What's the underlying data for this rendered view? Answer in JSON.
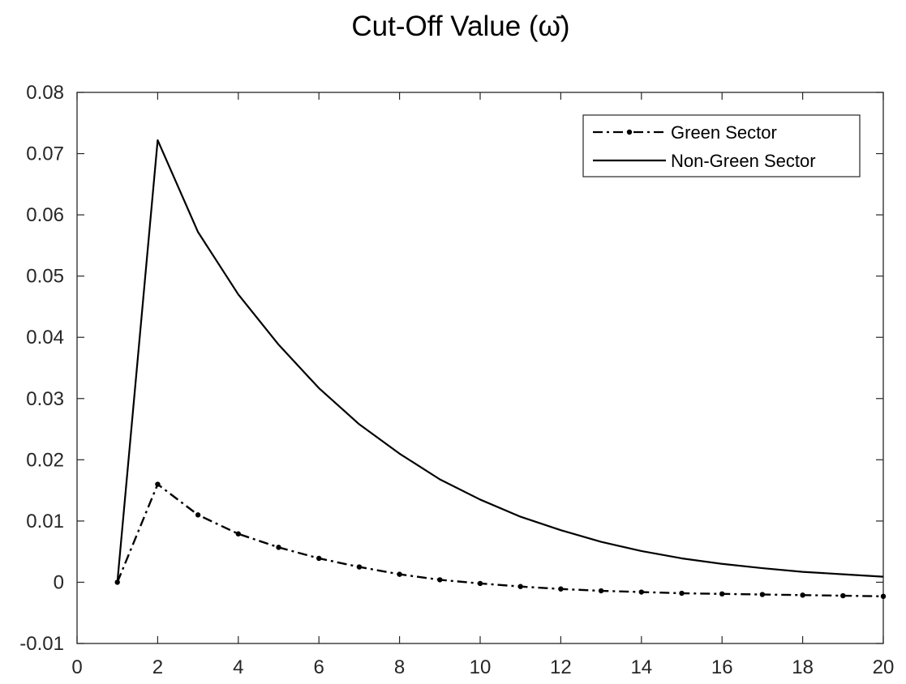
{
  "chart_data": {
    "type": "line",
    "title": "Cut-Off Value (ω̄)",
    "xlabel": "",
    "ylabel": "",
    "xlim": [
      0,
      20
    ],
    "ylim": [
      -0.01,
      0.08
    ],
    "x_ticks": [
      0,
      2,
      4,
      6,
      8,
      10,
      12,
      14,
      16,
      18,
      20
    ],
    "x_tick_labels": [
      "0",
      "2",
      "4",
      "6",
      "8",
      "10",
      "12",
      "14",
      "16",
      "18",
      "20"
    ],
    "y_ticks": [
      -0.01,
      0,
      0.01,
      0.02,
      0.03,
      0.04,
      0.05,
      0.06,
      0.07,
      0.08
    ],
    "y_tick_labels": [
      "-0.01",
      "0",
      "0.01",
      "0.02",
      "0.03",
      "0.04",
      "0.05",
      "0.06",
      "0.07",
      "0.08"
    ],
    "grid": false,
    "legend_position": "top-right",
    "x": [
      1,
      2,
      3,
      4,
      5,
      6,
      7,
      8,
      9,
      10,
      11,
      12,
      13,
      14,
      15,
      16,
      17,
      18,
      19,
      20
    ],
    "series": [
      {
        "name": "Green Sector",
        "style": "dash-dot",
        "marker": "dot",
        "color": "#000000",
        "values": [
          0,
          0.016,
          0.011,
          0.0079,
          0.0057,
          0.0039,
          0.0025,
          0.0013,
          0.0004,
          -0.0002,
          -0.0007,
          -0.0011,
          -0.0014,
          -0.0016,
          -0.0018,
          -0.0019,
          -0.002,
          -0.0021,
          -0.0022,
          -0.0023
        ]
      },
      {
        "name": "Non-Green Sector",
        "style": "solid",
        "marker": "none",
        "color": "#000000",
        "values": [
          0,
          0.0722,
          0.0572,
          0.047,
          0.0388,
          0.0317,
          0.0258,
          0.021,
          0.0168,
          0.0135,
          0.0107,
          0.0085,
          0.0066,
          0.0051,
          0.0039,
          0.003,
          0.0023,
          0.0017,
          0.0013,
          0.0009
        ]
      }
    ]
  }
}
